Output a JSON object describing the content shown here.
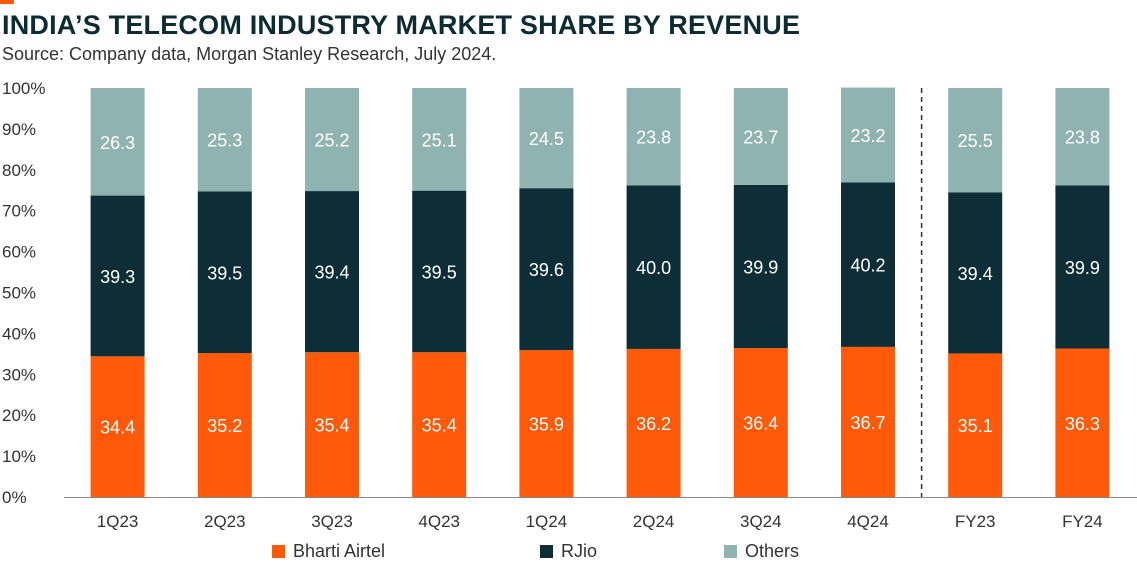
{
  "header": {
    "title": "INDIA’S TELECOM INDUSTRY MARKET SHARE BY REVENUE",
    "subtitle": "Source: Company data, Morgan Stanley Research, July 2024."
  },
  "colors": {
    "accent": "#ff5a0a",
    "bharti": "#ff5a0a",
    "rjio": "#0d2e36",
    "others": "#8fb3b0",
    "title": "#0d2b33"
  },
  "chart_data": {
    "type": "bar",
    "stacked": true,
    "title": "INDIA’S TELECOM INDUSTRY MARKET SHARE BY REVENUE",
    "subtitle": "Source: Company data, Morgan Stanley Research, July 2024.",
    "categories": [
      "1Q23",
      "2Q23",
      "3Q23",
      "4Q23",
      "1Q24",
      "2Q24",
      "3Q24",
      "4Q24",
      "FY23",
      "FY24"
    ],
    "series": [
      {
        "name": "Bharti Airtel",
        "color": "#ff5a0a",
        "label_color": "#ffffff",
        "values": [
          34.4,
          35.2,
          35.4,
          35.4,
          35.9,
          36.2,
          36.4,
          36.7,
          35.1,
          36.3
        ],
        "labels": [
          "34.4",
          "35.2",
          "35.4",
          "35.4",
          "35.9",
          "36.2",
          "36.4",
          "36.7",
          "35.1",
          "36.3"
        ]
      },
      {
        "name": "RJio",
        "color": "#0d2e36",
        "label_color": "#ffffff",
        "values": [
          39.3,
          39.5,
          39.4,
          39.5,
          39.6,
          40.0,
          39.9,
          40.2,
          39.4,
          39.9
        ],
        "labels": [
          "39.3",
          "39.5",
          "39.4",
          "39.5",
          "39.6",
          "40.0",
          "39.9",
          "40.2",
          "39.4",
          "39.9"
        ]
      },
      {
        "name": "Others",
        "color": "#8fb3b0",
        "label_color": "#ffffff",
        "values": [
          26.3,
          25.3,
          25.2,
          25.1,
          24.5,
          23.8,
          23.7,
          23.2,
          25.5,
          23.8
        ],
        "labels": [
          "26.3",
          "25.3",
          "25.2",
          "25.1",
          "24.5",
          "23.8",
          "23.7",
          "23.2",
          "25.5",
          "23.8"
        ]
      }
    ],
    "yticks": [
      "0%",
      "10%",
      "20%",
      "30%",
      "40%",
      "50%",
      "60%",
      "70%",
      "80%",
      "90%",
      "100%"
    ],
    "ylim": [
      0,
      100
    ],
    "xlabel": "",
    "ylabel": "",
    "grid": false,
    "divider_after_category": "4Q24",
    "legend_position": "bottom"
  }
}
